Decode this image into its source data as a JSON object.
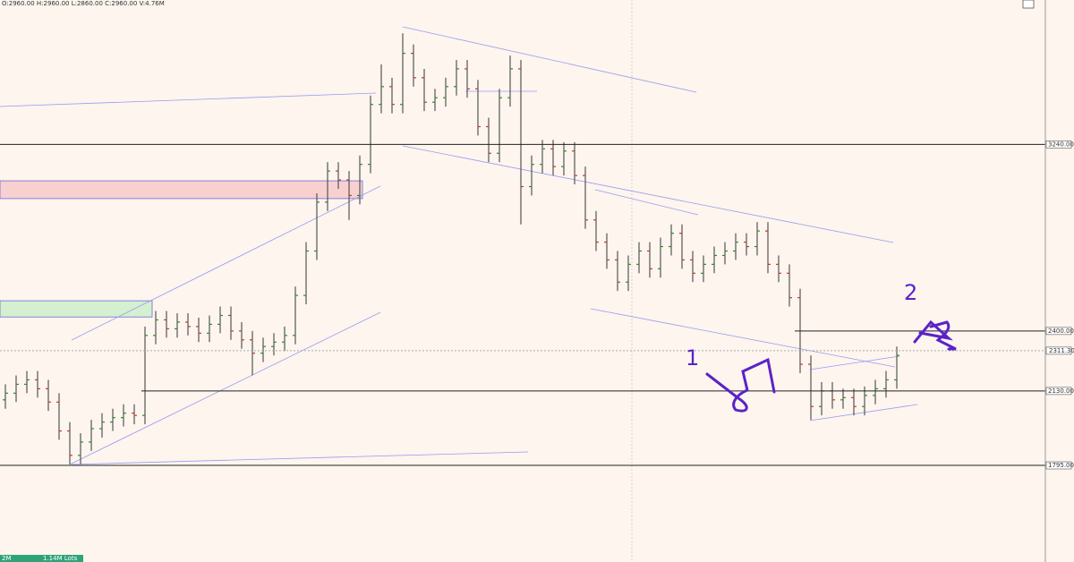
{
  "chart_data": {
    "type": "ohlc",
    "header": "O:2960.00 H:2960.00 L:2860.00 C:2960.00 V:4.76M",
    "footer_left": "2M",
    "footer_volume": "1.14M Lots",
    "annotations": [
      "1",
      "2"
    ],
    "ylim": [
      1360,
      3890
    ],
    "up_color": "#2e8b2e",
    "down_color": "#c0392b",
    "bar_color": "#555555",
    "open": [
      2090,
      2120,
      2160,
      2180,
      2140,
      2080,
      1950,
      1840,
      1900,
      1960,
      1990,
      2010,
      2030,
      2020,
      2380,
      2450,
      2410,
      2440,
      2420,
      2390,
      2430,
      2470,
      2400,
      2360,
      2300,
      2330,
      2350,
      2380,
      2560,
      2760,
      2980,
      3120,
      3080,
      3010,
      3150,
      3420,
      3500,
      3420,
      3650,
      3540,
      3430,
      3450,
      3500,
      3580,
      3490,
      3320,
      3200,
      3450,
      3580,
      3050,
      3150,
      3220,
      3140,
      3210,
      3100,
      2900,
      2800,
      2720,
      2620,
      2700,
      2760,
      2680,
      2780,
      2840,
      2720,
      2660,
      2700,
      2740,
      2760,
      2800,
      2780,
      2850,
      2700,
      2660,
      2550,
      2250,
      2060,
      2130,
      2090,
      2100,
      2060,
      2110,
      2140,
      2180
    ],
    "high": [
      2160,
      2200,
      2220,
      2220,
      2180,
      2120,
      1990,
      1940,
      2000,
      2030,
      2050,
      2070,
      2070,
      2420,
      2490,
      2490,
      2480,
      2480,
      2460,
      2470,
      2510,
      2510,
      2440,
      2400,
      2370,
      2390,
      2420,
      2600,
      2800,
      3020,
      3160,
      3160,
      3120,
      3190,
      3460,
      3600,
      3540,
      3740,
      3690,
      3580,
      3490,
      3540,
      3620,
      3620,
      3530,
      3360,
      3490,
      3640,
      3620,
      3190,
      3260,
      3260,
      3250,
      3250,
      3140,
      2940,
      2840,
      2760,
      2740,
      2800,
      2800,
      2820,
      2880,
      2880,
      2760,
      2740,
      2780,
      2800,
      2840,
      2840,
      2890,
      2890,
      2740,
      2700,
      2590,
      2290,
      2170,
      2170,
      2140,
      2140,
      2150,
      2180,
      2220,
      2330
    ],
    "low": [
      2050,
      2080,
      2120,
      2100,
      2040,
      1910,
      1800,
      1800,
      1860,
      1920,
      1950,
      1970,
      1980,
      1980,
      2340,
      2370,
      2370,
      2380,
      2350,
      2350,
      2390,
      2360,
      2320,
      2200,
      2260,
      2290,
      2310,
      2340,
      2520,
      2720,
      2940,
      3040,
      2900,
      2970,
      3110,
      3380,
      3380,
      3380,
      3500,
      3390,
      3390,
      3410,
      3460,
      3450,
      3280,
      3160,
      3160,
      3410,
      2880,
      3010,
      3110,
      3100,
      3100,
      3060,
      2860,
      2760,
      2680,
      2580,
      2580,
      2660,
      2640,
      2640,
      2740,
      2680,
      2620,
      2620,
      2660,
      2700,
      2720,
      2740,
      2740,
      2660,
      2620,
      2510,
      2210,
      2000,
      2020,
      2050,
      2050,
      2020,
      2020,
      2070,
      2100,
      2140
    ],
    "close": [
      2120,
      2160,
      2180,
      2140,
      2080,
      1950,
      1840,
      1900,
      1960,
      1990,
      2010,
      2030,
      2020,
      2380,
      2450,
      2410,
      2440,
      2420,
      2390,
      2430,
      2470,
      2400,
      2360,
      2300,
      2330,
      2350,
      2380,
      2560,
      2760,
      2980,
      3120,
      3080,
      3010,
      3150,
      3420,
      3500,
      3420,
      3650,
      3540,
      3430,
      3450,
      3500,
      3580,
      3490,
      3320,
      3200,
      3450,
      3580,
      3050,
      3150,
      3220,
      3140,
      3210,
      3100,
      2900,
      2800,
      2720,
      2620,
      2700,
      2760,
      2680,
      2780,
      2840,
      2720,
      2660,
      2700,
      2740,
      2760,
      2800,
      2780,
      2850,
      2700,
      2660,
      2550,
      2250,
      2060,
      2130,
      2090,
      2100,
      2060,
      2110,
      2140,
      2180,
      2290
    ],
    "levels": [
      {
        "value": 3240,
        "label": "3240.00"
      },
      {
        "value": 2400,
        "label": "2400.00"
      },
      {
        "value": 2130,
        "label": "2130.00"
      },
      {
        "value": 1795,
        "label": "1795.00"
      }
    ],
    "last_price": {
      "value": 2311.3,
      "label": "2311.30"
    },
    "zones": [
      {
        "range": [
          2996,
          3076
        ],
        "color": "#f8d0d0"
      },
      {
        "range": [
          2463,
          2536
        ],
        "color": "#d4f0d0"
      }
    ]
  }
}
